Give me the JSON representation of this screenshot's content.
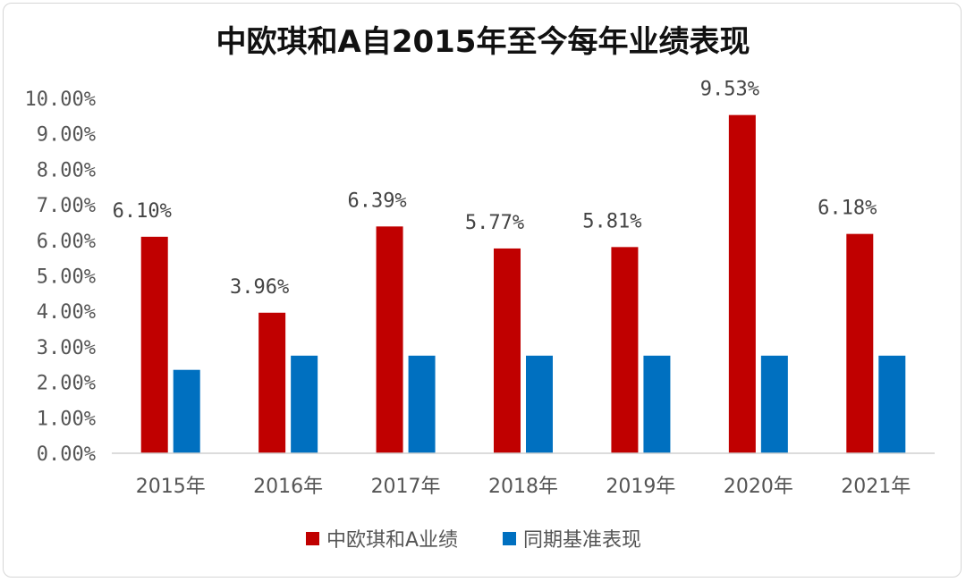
{
  "chart_data": {
    "type": "bar",
    "title": "中欧琪和A自2015年至今每年业绩表现",
    "categories": [
      "2015年",
      "2016年",
      "2017年",
      "2018年",
      "2019年",
      "2020年",
      "2021年"
    ],
    "series": [
      {
        "name": "中欧琪和A业绩",
        "color": "#C00000",
        "values": [
          6.1,
          3.96,
          6.39,
          5.77,
          5.81,
          9.53,
          6.18
        ],
        "data_labels": [
          "6.10%",
          "3.96%",
          "6.39%",
          "5.77%",
          "5.81%",
          "9.53%",
          "6.18%"
        ]
      },
      {
        "name": "同期基准表现",
        "color": "#0070C0",
        "values": [
          2.35,
          2.75,
          2.75,
          2.75,
          2.75,
          2.75,
          2.75
        ]
      }
    ],
    "ylim": [
      0,
      10
    ],
    "y_ticks": [
      "0.00%",
      "1.00%",
      "2.00%",
      "3.00%",
      "4.00%",
      "5.00%",
      "6.00%",
      "7.00%",
      "8.00%",
      "9.00%",
      "10.00%"
    ],
    "grid": false,
    "legend_position": "bottom"
  }
}
